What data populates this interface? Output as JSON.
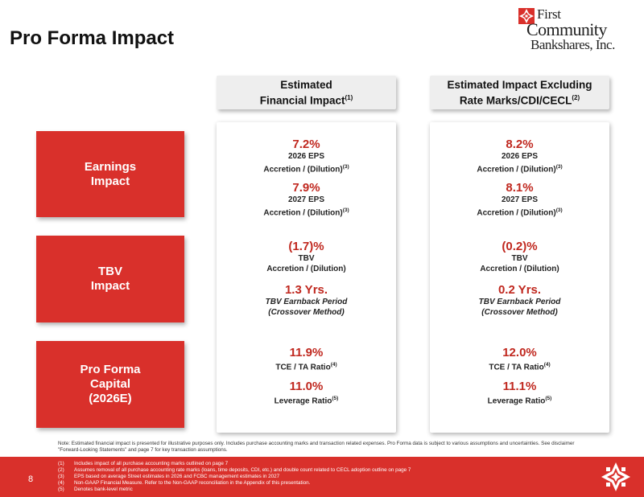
{
  "title": "Pro Forma Impact",
  "logo": {
    "line1": "First",
    "line2": "Community",
    "line3": "Bankshares, Inc.",
    "mark_icon": "quilt-star-icon"
  },
  "columns": [
    {
      "line1": "Estimated",
      "line2": "Financial Impact",
      "sup": "(1)"
    },
    {
      "line1": "Estimated Impact Excluding",
      "line2": "Rate Marks/CDI/CECL",
      "sup": "(2)"
    }
  ],
  "rows": [
    {
      "line1": "Earnings",
      "line2": "Impact"
    },
    {
      "line1": "TBV",
      "line2": "Impact"
    },
    {
      "line1": "Pro Forma",
      "line2": "Capital",
      "line3": "(2026E)"
    }
  ],
  "metrics": {
    "col1": {
      "eps2026": {
        "value": "7.2%",
        "label1": "2026 EPS",
        "label2": "Accretion / (Dilution)",
        "sup": "(3)"
      },
      "eps2027": {
        "value": "7.9%",
        "label1": "2027 EPS",
        "label2": "Accretion / (Dilution)",
        "sup": "(3)"
      },
      "tbv": {
        "value": "(1.7)%",
        "label1": "TBV",
        "label2": "Accretion / (Dilution)"
      },
      "earnback": {
        "value": "1.3 Yrs.",
        "label1": "TBV Earnback Period",
        "label2": "(Crossover Method)"
      },
      "tce": {
        "value": "11.9%",
        "label1": "TCE / TA Ratio",
        "sup": "(4)"
      },
      "leverage": {
        "value": "11.0%",
        "label1": "Leverage Ratio",
        "sup": "(5)"
      }
    },
    "col2": {
      "eps2026": {
        "value": "8.2%",
        "label1": "2026 EPS",
        "label2": "Accretion / (Dilution)",
        "sup": "(3)"
      },
      "eps2027": {
        "value": "8.1%",
        "label1": "2027 EPS",
        "label2": "Accretion / (Dilution)",
        "sup": "(3)"
      },
      "tbv": {
        "value": "(0.2)%",
        "label1": "TBV",
        "label2": "Accretion / (Dilution)"
      },
      "earnback": {
        "value": "0.2 Yrs.",
        "label1": "TBV Earnback Period",
        "label2": "(Crossover Method)"
      },
      "tce": {
        "value": "12.0%",
        "label1": "TCE / TA Ratio",
        "sup": "(4)"
      },
      "leverage": {
        "value": "11.1%",
        "label1": "Leverage Ratio",
        "sup": "(5)"
      }
    }
  },
  "note": "Note: Estimated financial impact is presented for illustrative purposes only. Includes purchase accounting marks and transaction related expenses. Pro Forma data is subject to various assumptions and uncertainties. See disclaimer \"Forward-Looking Statements\" and page 7 for key transaction assumptions.",
  "page_number": "8",
  "footnotes": [
    {
      "key": "(1)",
      "text": "Includes impact of all purchase accounting marks outlined on page 7"
    },
    {
      "key": "(2)",
      "text": "Assumes removal of all purchase accounting rate marks (loans, time deposits, CDI, etc.) and double count related to CECL adoption outline on page 7"
    },
    {
      "key": "(3)",
      "text": "EPS based on average Street estimates in 2026 and FCBC management estimates in 2027"
    },
    {
      "key": "(4)",
      "text": "Non-GAAP Financial Measure. Refer to the Non-GAAP reconciliation in the Appendix of this presentation."
    },
    {
      "key": "(5)",
      "text": "Denotes bank-level metric"
    }
  ],
  "colors": {
    "brand_red": "#d9302b",
    "value_red": "#c0281f"
  }
}
